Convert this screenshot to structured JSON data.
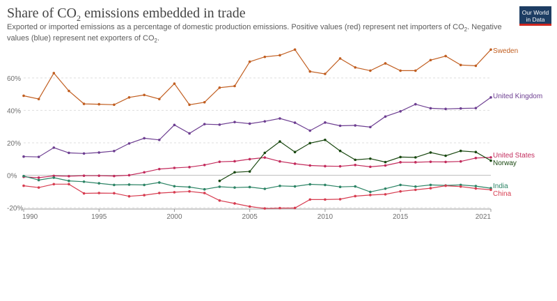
{
  "header": {
    "title_main": "Share of CO",
    "title_sub": "2",
    "title_rest": " emissions embedded in trade",
    "subtitle_1": "Exported or imported emissions as a percentage of domestic production emissions. Positive values (red) represent net importers of CO",
    "subtitle_sub1": "2",
    "subtitle_2": ". Negative values (blue) represent net exporters of CO",
    "subtitle_sub2": "2",
    "subtitle_3": ".",
    "logo_line1": "Our World",
    "logo_line2": "in Data"
  },
  "chart_data": {
    "type": "line",
    "title": "Share of CO₂ emissions embedded in trade",
    "xlabel": "",
    "ylabel": "",
    "xlim": [
      1990,
      2021
    ],
    "ylim": [
      -20,
      78
    ],
    "y_ticks": [
      -20,
      0,
      20,
      40,
      60
    ],
    "y_tick_labels": [
      "-20%",
      "0%",
      "20%",
      "40%",
      "60%"
    ],
    "x_ticks": [
      1990,
      1995,
      2000,
      2005,
      2010,
      2015,
      2021
    ],
    "x_tick_labels": [
      "1990",
      "1995",
      "2000",
      "2005",
      "2010",
      "2015",
      "2021"
    ],
    "grid": "horizontal dashed",
    "legend": "inline labels at right end of lines",
    "series": [
      {
        "name": "Sweden",
        "color": "#c15e20",
        "x": [
          1990,
          1991,
          1992,
          1993,
          1994,
          1995,
          1996,
          1997,
          1998,
          1999,
          2000,
          2001,
          2002,
          2003,
          2004,
          2005,
          2006,
          2007,
          2008,
          2009,
          2010,
          2011,
          2012,
          2013,
          2014,
          2015,
          2016,
          2017,
          2018,
          2019,
          2020,
          2021
        ],
        "values": [
          49,
          47,
          63,
          52,
          44,
          43.8,
          43.5,
          48,
          49.5,
          47,
          56.5,
          43.5,
          45,
          54,
          55,
          70,
          73,
          74,
          77.5,
          64,
          62.5,
          72,
          66.5,
          64.5,
          69,
          64.5,
          64.5,
          71,
          73.5,
          68,
          67.5,
          77.5
        ]
      },
      {
        "name": "United Kingdom",
        "color": "#6d3e91",
        "x": [
          1990,
          1991,
          1992,
          1993,
          1994,
          1995,
          1996,
          1997,
          1998,
          1999,
          2000,
          2001,
          2002,
          2003,
          2004,
          2005,
          2006,
          2007,
          2008,
          2009,
          2010,
          2011,
          2012,
          2013,
          2014,
          2015,
          2016,
          2017,
          2018,
          2019,
          2020,
          2021
        ],
        "values": [
          11.5,
          11.3,
          17,
          13.8,
          13.4,
          14,
          14.9,
          19.6,
          22.8,
          21.8,
          31,
          25.8,
          31.5,
          31.2,
          32.8,
          31.8,
          33.2,
          35,
          32.4,
          27.5,
          32.5,
          30.5,
          30.7,
          29.7,
          36.2,
          39.4,
          43.8,
          41.3,
          40.9,
          41.2,
          41.4,
          48
        ]
      },
      {
        "name": "United States",
        "color": "#c32b5c",
        "x": [
          1990,
          1991,
          1992,
          1993,
          1994,
          1995,
          1996,
          1997,
          1998,
          1999,
          2000,
          2001,
          2002,
          2003,
          2004,
          2005,
          2006,
          2007,
          2008,
          2009,
          2010,
          2011,
          2012,
          2013,
          2014,
          2015,
          2016,
          2017,
          2018,
          2019,
          2020,
          2021
        ],
        "values": [
          -1,
          -1.5,
          -0.4,
          -0.6,
          -0.3,
          -0.3,
          -0.5,
          0,
          1.8,
          3.8,
          4.5,
          5,
          6.3,
          8.3,
          8.6,
          9.9,
          10.9,
          8.5,
          7.1,
          6,
          5.6,
          5.5,
          6.3,
          5.2,
          6,
          8,
          8,
          8.3,
          8.2,
          8.5,
          10.6,
          11
        ]
      },
      {
        "name": "Norway",
        "color": "#18470f",
        "x": [
          2003,
          2004,
          2005,
          2006,
          2007,
          2008,
          2009,
          2010,
          2011,
          2012,
          2013,
          2014,
          2015,
          2016,
          2017,
          2018,
          2019,
          2020,
          2021
        ],
        "values": [
          -3.5,
          1.8,
          2.3,
          13.8,
          20.8,
          14.3,
          19.8,
          21.8,
          15,
          9.5,
          10.2,
          8.1,
          11.2,
          11,
          14,
          12,
          15,
          14.3,
          9
        ]
      },
      {
        "name": "India",
        "color": "#2c8465",
        "x": [
          1990,
          1991,
          1992,
          1993,
          1994,
          1995,
          1996,
          1997,
          1998,
          1999,
          2000,
          2001,
          2002,
          2003,
          2004,
          2005,
          2006,
          2007,
          2008,
          2009,
          2010,
          2011,
          2012,
          2013,
          2014,
          2015,
          2016,
          2017,
          2018,
          2019,
          2020,
          2021
        ],
        "values": [
          -0.5,
          -3,
          -1.5,
          -3.5,
          -4,
          -5,
          -6,
          -5.8,
          -6,
          -4.5,
          -6.8,
          -7.3,
          -8.7,
          -7.1,
          -7.6,
          -7.3,
          -8.4,
          -6.6,
          -6.9,
          -5.6,
          -6,
          -7.2,
          -6.9,
          -10.3,
          -8.3,
          -6,
          -7,
          -6,
          -6.3,
          -6,
          -6.7,
          -8
        ]
      },
      {
        "name": "China",
        "color": "#d73c50",
        "x": [
          1990,
          1991,
          1992,
          1993,
          1994,
          1995,
          1996,
          1997,
          1998,
          1999,
          2000,
          2001,
          2002,
          2003,
          2004,
          2005,
          2006,
          2007,
          2008,
          2009,
          2010,
          2011,
          2012,
          2013,
          2014,
          2015,
          2016,
          2017,
          2018,
          2019,
          2020,
          2021
        ],
        "values": [
          -6.5,
          -7.6,
          -5.5,
          -5.5,
          -11.2,
          -11,
          -11.1,
          -13,
          -12.3,
          -11,
          -10.5,
          -10,
          -11,
          -15.6,
          -17.4,
          -19.3,
          -20.5,
          -20.3,
          -20.2,
          -15,
          -15,
          -14.8,
          -12.9,
          -12.2,
          -11.8,
          -10,
          -9,
          -8,
          -6.5,
          -7,
          -8.2,
          -9
        ]
      }
    ]
  }
}
